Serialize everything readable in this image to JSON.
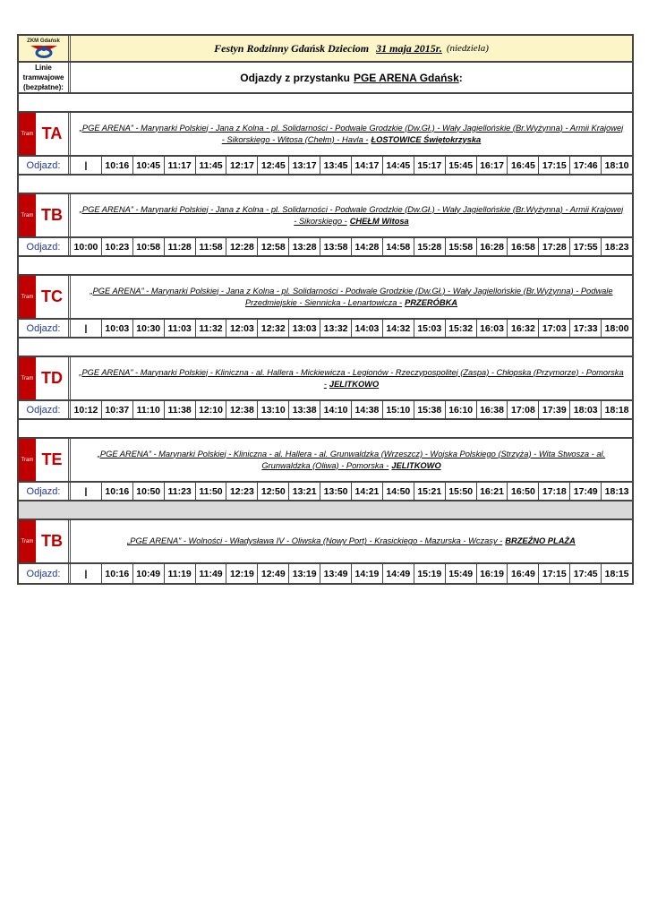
{
  "header": {
    "logo_text": "ZKM Gdańsk",
    "title": "Festyn Rodzinny Gdańsk Dzieciom",
    "date": "31 maja 2015r.",
    "day": "(niedziela)"
  },
  "subheader": {
    "lines_label_1": "Linie",
    "lines_label_2": "tramwajowe",
    "lines_label_3": "(bezpłatne):",
    "heading_prefix": "Odjazdy z przystanku",
    "stop": "PGE ARENA Gdańsk",
    "colon": ":"
  },
  "colors": {
    "tram_red": "#c00000",
    "header_yellow": "#fbf5c8",
    "odjazd_blue": "#1f3a93"
  },
  "routes": [
    {
      "tag": "Tram",
      "line": "TA",
      "route": "„PGE ARENA” - Marynarki Polskiej - Jana z Kolna - pl. Solidarności - Podwale Grodzkie (Dw.Gł.) - Wały Jagiellońskie (Br.Wyżynna) - Armii Krajowej - Sikorskiego - Witosa (Chełm) - Havla -",
      "dest": "ŁOSTOWICE Świętokrzyska",
      "label": "Odjazd:",
      "times": [
        "|",
        "10:16",
        "10:45",
        "11:17",
        "11:45",
        "12:17",
        "12:45",
        "13:17",
        "13:45",
        "14:17",
        "14:45",
        "15:17",
        "15:45",
        "16:17",
        "16:45",
        "17:15",
        "17:46",
        "18:10"
      ]
    },
    {
      "tag": "Tram",
      "line": "TB",
      "route": "„PGE ARENA” - Marynarki Polskiej - Jana z Kolna - pl. Solidarności - Podwale Grodzkie (Dw.Gł.) - Wały Jagiellońskie (Br.Wyżynna) - Armii Krajowej - Sikorskiego -",
      "dest": "CHEŁM Witosa",
      "label": "Odjazd:",
      "times": [
        "10:00",
        "10:23",
        "10:58",
        "11:28",
        "11:58",
        "12:28",
        "12:58",
        "13:28",
        "13:58",
        "14:28",
        "14:58",
        "15:28",
        "15:58",
        "16:28",
        "16:58",
        "17:28",
        "17:55",
        "18:23"
      ]
    },
    {
      "tag": "Tram",
      "line": "TC",
      "route": "„PGE ARENA” - Marynarki Polskiej - Jana z Kolna - pl. Solidarności - Podwale Grodzkie (Dw.Gł.) - Wały Jagiellońskie (Br.Wyżynna) - Podwale Przedmiejskie - Siennicka - Lenartowicza -",
      "dest": "PRZERÓBKA",
      "label": "Odjazd:",
      "times": [
        "|",
        "10:03",
        "10:30",
        "11:03",
        "11:32",
        "12:03",
        "12:32",
        "13:03",
        "13:32",
        "14:03",
        "14:32",
        "15:03",
        "15:32",
        "16:03",
        "16:32",
        "17:03",
        "17:33",
        "18:00"
      ]
    },
    {
      "tag": "Tram",
      "line": "TD",
      "route": "„PGE ARENA” - Marynarki Polskiej - Kliniczna - al. Hallera - Mickiewicza - Legionów - Rzeczypospolitej (Zaspa) - Chłopska (Przymorze) - Pomorska -",
      "dest": "JELITKOWO",
      "label": "Odjazd:",
      "times": [
        "10:12",
        "10:37",
        "11:10",
        "11:38",
        "12:10",
        "12:38",
        "13:10",
        "13:38",
        "14:10",
        "14:38",
        "15:10",
        "15:38",
        "16:10",
        "16:38",
        "17:08",
        "17:39",
        "18:03",
        "18:18"
      ]
    },
    {
      "tag": "Tram",
      "line": "TE",
      "route": "„PGE ARENA” - Marynarki Polskiej - Kliniczna - al. Hallera - al. Grunwaldzka (Wrzeszcz) - Wojska Polskiego (Strzyża) - Wita Stwosza - al. Grunwaldzka (Oliwa) - Pomorska -",
      "dest": "JELITKOWO",
      "label": "Odjazd:",
      "times": [
        "|",
        "10:16",
        "10:50",
        "11:23",
        "11:50",
        "12:23",
        "12:50",
        "13:21",
        "13:50",
        "14:21",
        "14:50",
        "15:21",
        "15:50",
        "16:21",
        "16:50",
        "17:18",
        "17:49",
        "18:13"
      ]
    },
    {
      "tag": "Tram",
      "line": "TB",
      "route": "„PGE ARENA” - Wolności - Władysława IV - Oliwska (Nowy Port) - Krasickiego - Mazurska - Wczasy -",
      "dest": "BRZEŹNO PLAŻA",
      "label": "Odjazd:",
      "times": [
        "|",
        "10:16",
        "10:49",
        "11:19",
        "11:49",
        "12:19",
        "12:49",
        "13:19",
        "13:49",
        "14:19",
        "14:49",
        "15:19",
        "15:49",
        "16:19",
        "16:49",
        "17:15",
        "17:45",
        "18:15"
      ]
    }
  ]
}
